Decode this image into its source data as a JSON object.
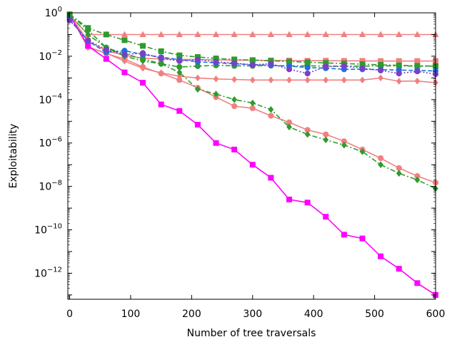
{
  "chart_data": {
    "type": "line",
    "xlabel": "Number of tree traversals",
    "ylabel": "Exploitability",
    "xlim": [
      -3,
      600
    ],
    "ylim_log10": [
      -13.2,
      0
    ],
    "y_scale": "log",
    "grid": false,
    "x_ticks": [
      0,
      100,
      200,
      300,
      400,
      500,
      600
    ],
    "y_tick_exponents": [
      0,
      -2,
      -4,
      -6,
      -8,
      -10,
      -12
    ],
    "series": [
      {
        "color": "#f08080",
        "marker": "triangle",
        "linestyle": "solid",
        "x": [
          0,
          30,
          60,
          90,
          120,
          150,
          180,
          210,
          240,
          270,
          300,
          330,
          360,
          390,
          420,
          450,
          480,
          510,
          540,
          570,
          600
        ],
        "y": [
          0.8,
          0.1,
          0.1,
          0.1,
          0.1,
          0.1,
          0.1,
          0.1,
          0.1,
          0.1,
          0.1,
          0.1,
          0.1,
          0.1,
          0.1,
          0.1,
          0.1,
          0.1,
          0.1,
          0.1,
          0.1
        ]
      },
      {
        "color": "#f08080",
        "marker": "square",
        "linestyle": "solid",
        "x": [
          0,
          30,
          60,
          90,
          120,
          150,
          180,
          210,
          240,
          270,
          300,
          330,
          360,
          390,
          420,
          450,
          480,
          510,
          540,
          570,
          600
        ],
        "y": [
          0.8,
          0.05,
          0.018,
          0.011,
          0.008,
          0.0075,
          0.0072,
          0.007,
          0.0068,
          0.0066,
          0.0065,
          0.0064,
          0.0063,
          0.0062,
          0.0062,
          0.0061,
          0.0061,
          0.006,
          0.006,
          0.006,
          0.006
        ]
      },
      {
        "color": "#f08080",
        "marker": "diamond",
        "linestyle": "solid",
        "x": [
          0,
          30,
          60,
          90,
          120,
          150,
          180,
          210,
          240,
          270,
          300,
          330,
          360,
          390,
          420,
          450,
          480,
          510,
          540,
          570,
          600
        ],
        "y": [
          0.8,
          0.025,
          0.014,
          0.006,
          0.0028,
          0.0017,
          0.0012,
          0.001,
          0.0009,
          0.00085,
          0.0008,
          0.0008,
          0.0008,
          0.0008,
          0.0008,
          0.0008,
          0.0008,
          0.001,
          0.0007,
          0.00072,
          0.0006
        ]
      },
      {
        "color": "#f08080",
        "marker": "circle",
        "linestyle": "solid",
        "x": [
          0,
          30,
          60,
          90,
          120,
          150,
          180,
          210,
          240,
          270,
          300,
          330,
          360,
          390,
          420,
          450,
          480,
          510,
          540,
          570,
          600
        ],
        "y": [
          0.8,
          0.028,
          0.013,
          0.0075,
          0.0032,
          0.0016,
          0.0008,
          0.00035,
          0.00013,
          5e-05,
          4e-05,
          1.8e-05,
          9e-06,
          4e-06,
          2.5e-06,
          1.2e-06,
          5e-07,
          2e-07,
          7e-08,
          3e-08,
          1.5e-08
        ]
      },
      {
        "color": "#ff00ff",
        "marker": "square",
        "linestyle": "solid",
        "x": [
          0,
          30,
          60,
          90,
          120,
          150,
          180,
          210,
          240,
          270,
          300,
          330,
          360,
          390,
          420,
          450,
          480,
          510,
          540,
          570,
          600
        ],
        "y": [
          0.8,
          0.03,
          0.0075,
          0.0018,
          0.0006,
          6e-05,
          3e-05,
          7e-06,
          1e-06,
          5e-07,
          1e-07,
          2.5e-08,
          2.5e-09,
          1.8e-09,
          4e-10,
          6e-11,
          4e-11,
          6e-12,
          1.6e-12,
          3.5e-13,
          1e-13
        ]
      },
      {
        "color": "#2e9b2e",
        "marker": "diamond",
        "linestyle": "dashdot",
        "x": [
          0,
          30,
          60,
          90,
          120,
          150,
          180,
          210,
          240,
          270,
          300,
          330,
          360,
          390,
          420,
          450,
          480,
          510,
          540,
          570,
          600
        ],
        "y": [
          0.8,
          0.1,
          0.025,
          0.01,
          0.006,
          0.0045,
          0.0018,
          0.0003,
          0.00018,
          0.0001,
          7e-05,
          3.5e-05,
          5.5e-06,
          2.5e-06,
          1.4e-06,
          8e-07,
          4e-07,
          1e-07,
          4e-08,
          2e-08,
          8e-09
        ]
      },
      {
        "color": "#2e9b2e",
        "marker": "square",
        "linestyle": "dashdot",
        "x": [
          0,
          30,
          60,
          90,
          120,
          150,
          180,
          210,
          240,
          270,
          300,
          330,
          360,
          390,
          420,
          450,
          480,
          510,
          540,
          570,
          600
        ],
        "y": [
          0.85,
          0.2,
          0.1,
          0.055,
          0.03,
          0.017,
          0.011,
          0.0092,
          0.0079,
          0.0071,
          0.0066,
          0.0061,
          0.0057,
          0.0053,
          0.0049,
          0.0046,
          0.0043,
          0.004,
          0.0038,
          0.0036,
          0.0035
        ]
      },
      {
        "color": "#2e9b2e",
        "marker": "circle",
        "linestyle": "dashdot",
        "x": [
          0,
          30,
          60,
          90,
          120,
          150,
          180,
          210,
          240,
          270,
          300,
          330,
          360,
          390,
          420,
          450,
          480,
          510,
          540,
          570,
          600
        ],
        "y": [
          0.85,
          0.16,
          0.025,
          0.013,
          0.0075,
          0.0045,
          0.0032,
          0.0035,
          0.0038,
          0.0036,
          0.0036,
          0.0037,
          0.0036,
          0.0036,
          0.0035,
          0.0035,
          0.0035,
          0.0036,
          0.0036,
          0.0035,
          0.0035
        ]
      },
      {
        "color": "#1f6fe0",
        "marker": "circle",
        "linestyle": "dashed",
        "x": [
          0,
          30,
          60,
          90,
          120,
          150,
          180,
          210,
          240,
          270,
          300,
          330,
          360,
          390,
          420,
          450,
          480,
          510,
          540,
          570,
          600
        ],
        "y": [
          0.5,
          0.05,
          0.015,
          0.018,
          0.012,
          0.009,
          0.007,
          0.0055,
          0.005,
          0.0045,
          0.004,
          0.0038,
          0.0035,
          0.003,
          0.0028,
          0.0025,
          0.0025,
          0.0024,
          0.0023,
          0.0022,
          0.0021
        ]
      },
      {
        "color": "#7a3fc8",
        "marker": "circle",
        "linestyle": "dotted",
        "x": [
          0,
          30,
          60,
          90,
          120,
          150,
          180,
          210,
          240,
          270,
          300,
          330,
          360,
          390,
          420,
          450,
          480,
          510,
          540,
          570,
          600
        ],
        "y": [
          0.45,
          0.055,
          0.02,
          0.012,
          0.014,
          0.008,
          0.006,
          0.007,
          0.0055,
          0.0048,
          0.004,
          0.0045,
          0.0025,
          0.0016,
          0.0033,
          0.0035,
          0.0028,
          0.0022,
          0.0016,
          0.002,
          0.0015
        ]
      }
    ]
  }
}
